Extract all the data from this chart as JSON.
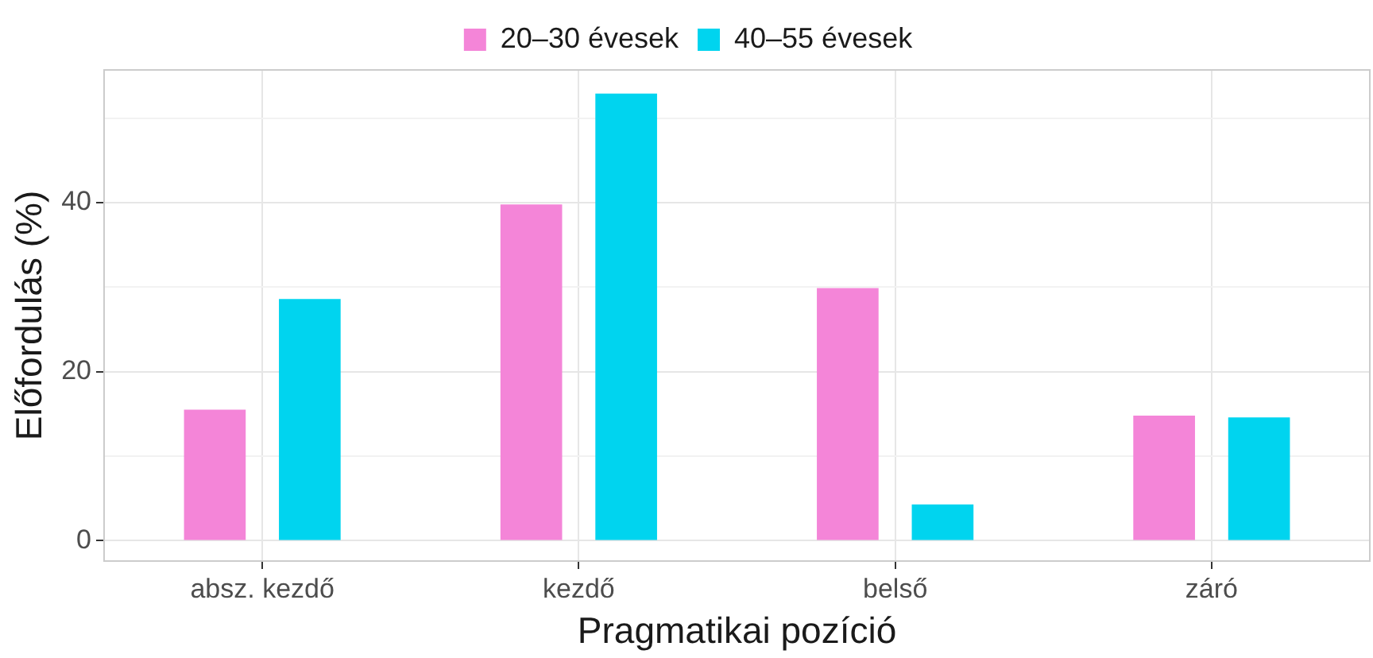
{
  "chart_data": {
    "type": "bar",
    "xlabel": "Pragmatikai pozíció",
    "ylabel": "Előfordulás (%)",
    "categories": [
      "absz. kezdő",
      "kezdő",
      "belső",
      "záró"
    ],
    "series": [
      {
        "name": "20–30 évesek",
        "color": "#f485d8",
        "values": [
          15.5,
          39.8,
          29.9,
          14.8
        ]
      },
      {
        "name": "40–55 évesek",
        "color": "#00d4ef",
        "values": [
          28.6,
          52.9,
          4.3,
          14.6
        ]
      }
    ],
    "ylim": [
      -2.4,
      55.7
    ],
    "yticks": [
      0,
      {
        "value": 10,
        "label": null
      },
      20,
      {
        "value": 30,
        "label": null
      },
      40,
      {
        "value": 50,
        "label": null
      }
    ],
    "grid": true,
    "legend": "top"
  }
}
